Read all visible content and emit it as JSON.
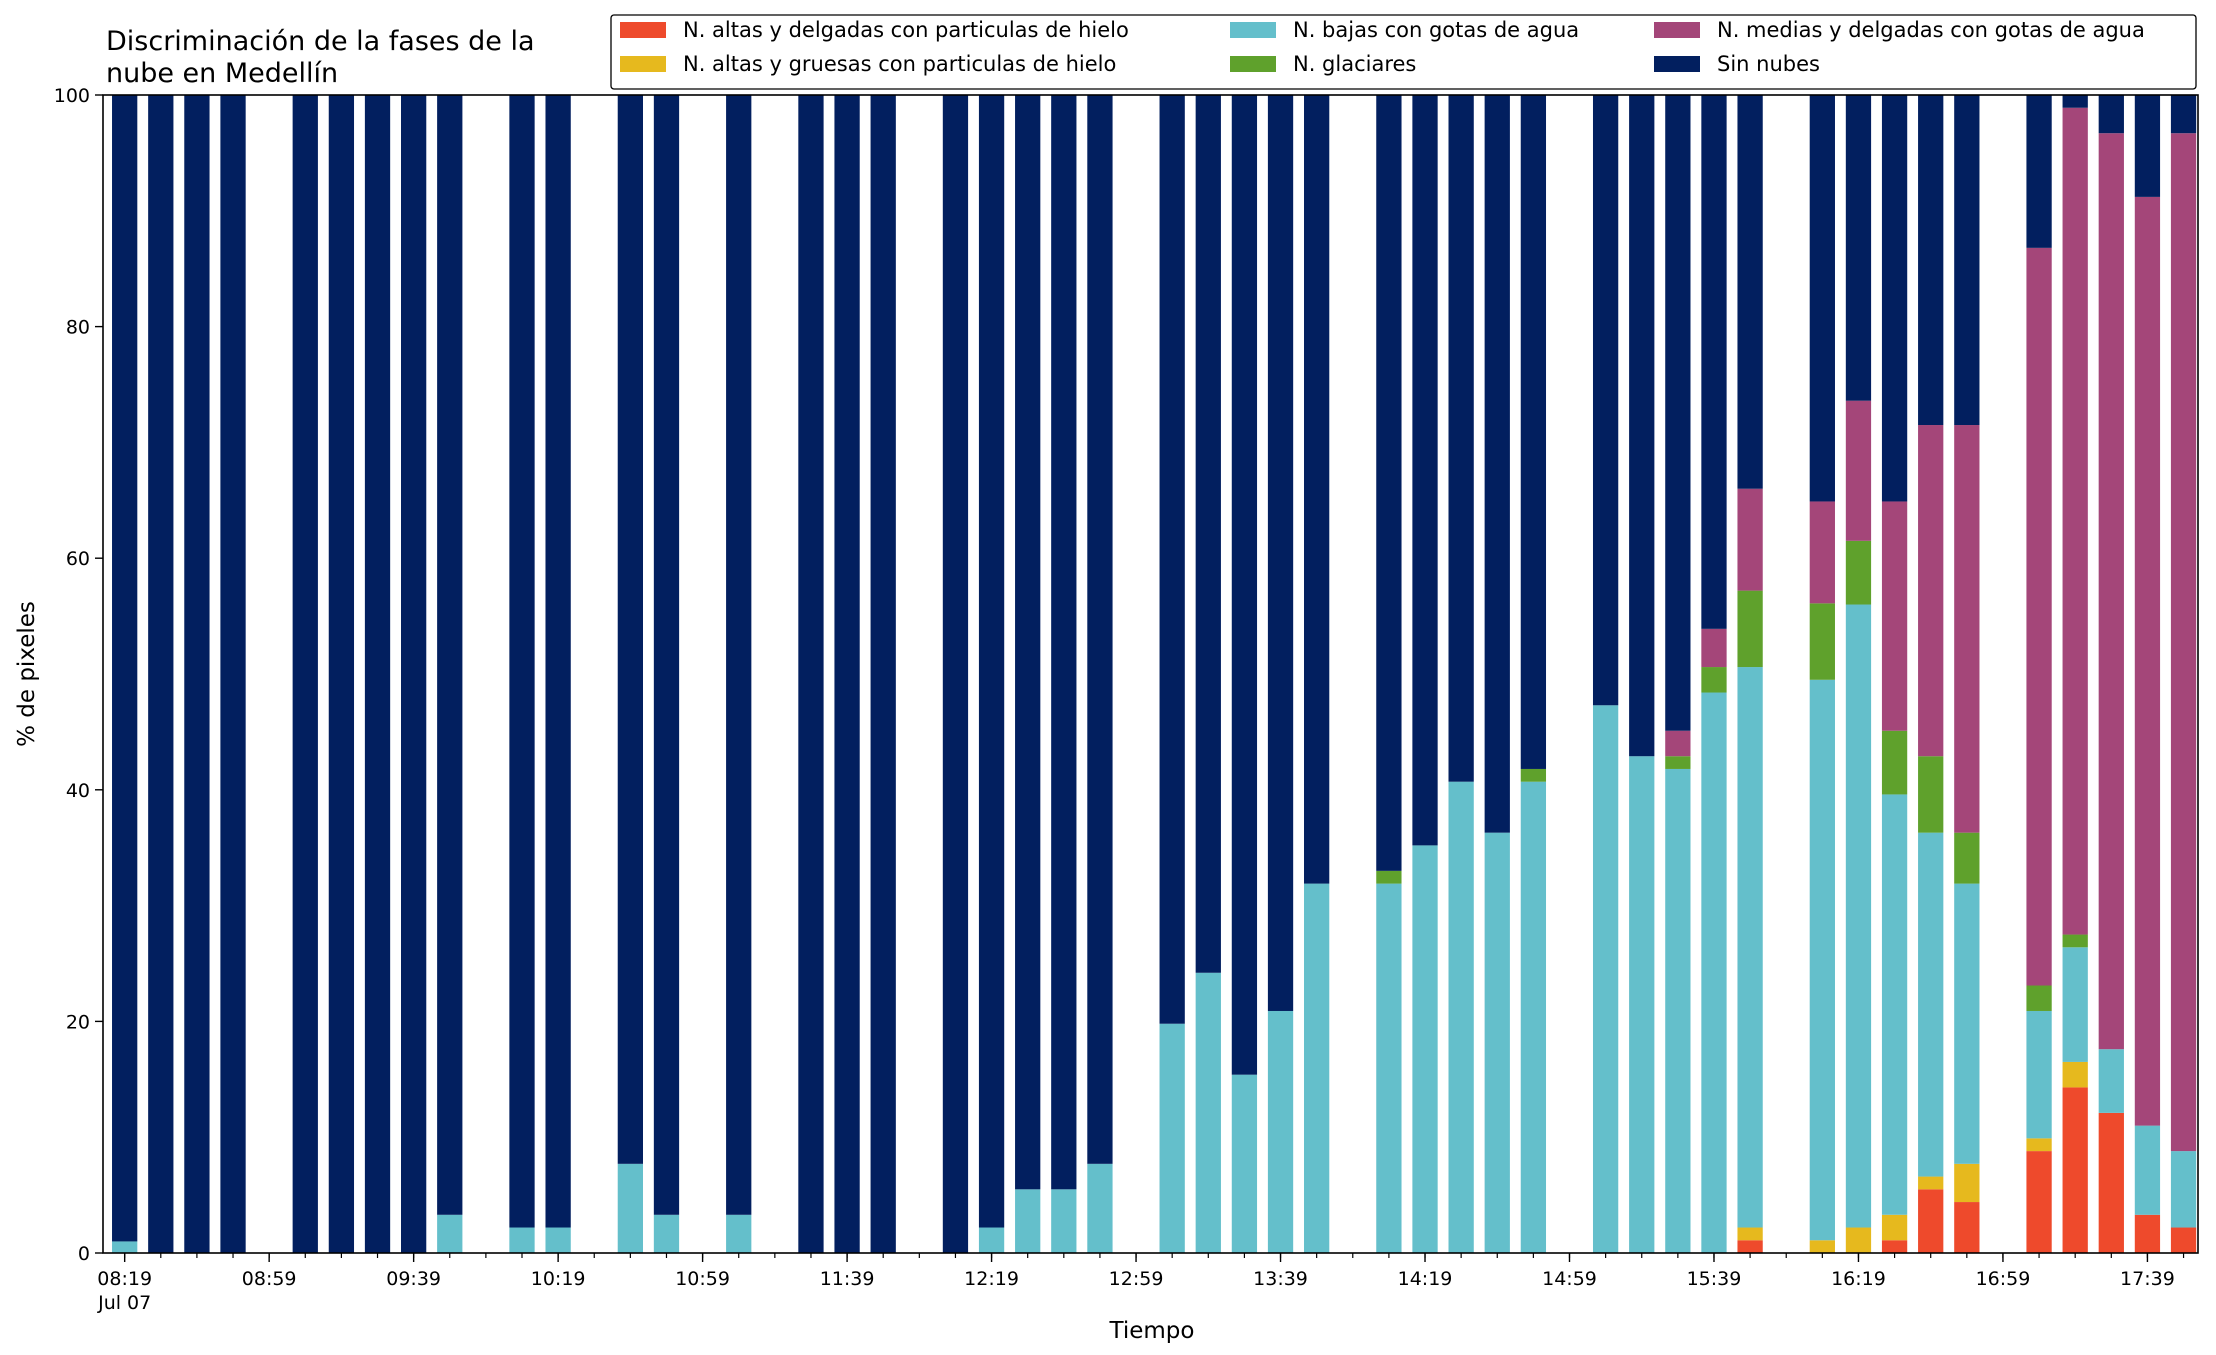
{
  "chart_data": {
    "type": "bar",
    "stacked": true,
    "title_lines": [
      "Discriminación de la fases de la",
      "nube en Medellín"
    ],
    "xlabel": "Tiempo",
    "ylabel": "% de pixeles",
    "ylim": [
      0,
      100
    ],
    "yticks": [
      "0",
      "20",
      "40",
      "60",
      "80",
      "100"
    ],
    "grid": false,
    "legend_position": "top-right",
    "legend_columns": 3,
    "xlim_minutes": [
      "08:13",
      "17:53"
    ],
    "x_major_ticks": [
      {
        "time": "08:19",
        "label": "08:19",
        "sublabel": "Jul 07"
      },
      {
        "time": "08:59",
        "label": "08:59"
      },
      {
        "time": "09:39",
        "label": "09:39"
      },
      {
        "time": "10:19",
        "label": "10:19"
      },
      {
        "time": "10:59",
        "label": "10:59"
      },
      {
        "time": "11:39",
        "label": "11:39"
      },
      {
        "time": "12:19",
        "label": "12:19"
      },
      {
        "time": "12:59",
        "label": "12:59"
      },
      {
        "time": "13:39",
        "label": "13:39"
      },
      {
        "time": "14:19",
        "label": "14:19"
      },
      {
        "time": "14:59",
        "label": "14:59"
      },
      {
        "time": "15:39",
        "label": "15:39"
      },
      {
        "time": "16:19",
        "label": "16:19"
      },
      {
        "time": "16:59",
        "label": "16:59"
      },
      {
        "time": "17:39",
        "label": "17:39"
      }
    ],
    "series": [
      {
        "key": "altas_delgadas",
        "name": "N. altas y delgadas con particulas de hielo",
        "color": "#ee4a2c"
      },
      {
        "key": "altas_gruesas",
        "name": "N. altas y gruesas con particulas de hielo",
        "color": "#e6b91e"
      },
      {
        "key": "bajas",
        "name": "N. bajas con gotas de agua",
        "color": "#64bfcb"
      },
      {
        "key": "glaciares",
        "name": "N. glaciares",
        "color": "#5fa12c"
      },
      {
        "key": "medias",
        "name": "N. medias y delgadas con gotas de agua",
        "color": "#a44679"
      },
      {
        "key": "sin_nubes",
        "name": "Sin nubes",
        "color": "#021f5f"
      }
    ],
    "legend_order": [
      "altas_delgadas",
      "bajas",
      "medias",
      "altas_gruesas",
      "glaciares",
      "sin_nubes"
    ],
    "bars": [
      {
        "time": "08:19",
        "values": [
          0,
          0,
          1,
          0,
          0,
          99
        ]
      },
      {
        "time": "08:29",
        "values": [
          0,
          0,
          0,
          0,
          0,
          100
        ]
      },
      {
        "time": "08:39",
        "values": [
          0,
          0,
          0,
          0,
          0,
          100
        ]
      },
      {
        "time": "08:49",
        "values": [
          0,
          0,
          0,
          0,
          0,
          100
        ]
      },
      {
        "time": "09:09",
        "values": [
          0,
          0,
          0,
          0,
          0,
          100
        ]
      },
      {
        "time": "09:19",
        "values": [
          0,
          0,
          0,
          0,
          0,
          100
        ]
      },
      {
        "time": "09:29",
        "values": [
          0,
          0,
          0,
          0,
          0,
          100
        ]
      },
      {
        "time": "09:39",
        "values": [
          0,
          0,
          0,
          0,
          0,
          100
        ]
      },
      {
        "time": "09:49",
        "values": [
          0,
          0,
          3.3,
          0,
          0,
          96.7
        ]
      },
      {
        "time": "10:09",
        "values": [
          0,
          0,
          2.2,
          0,
          0,
          97.8
        ]
      },
      {
        "time": "10:19",
        "values": [
          0,
          0,
          2.2,
          0,
          0,
          97.8
        ]
      },
      {
        "time": "10:39",
        "values": [
          0,
          0,
          7.7,
          0,
          0,
          92.3
        ]
      },
      {
        "time": "10:49",
        "values": [
          0,
          0,
          3.3,
          0,
          0,
          96.7
        ]
      },
      {
        "time": "11:09",
        "values": [
          0,
          0,
          3.3,
          0,
          0,
          96.7
        ]
      },
      {
        "time": "11:29",
        "values": [
          0,
          0,
          0,
          0,
          0,
          100
        ]
      },
      {
        "time": "11:39",
        "values": [
          0,
          0,
          0,
          0,
          0,
          100
        ]
      },
      {
        "time": "11:49",
        "values": [
          0,
          0,
          0,
          0,
          0,
          100
        ]
      },
      {
        "time": "12:09",
        "values": [
          0,
          0,
          0,
          0,
          0,
          100
        ]
      },
      {
        "time": "12:19",
        "values": [
          0,
          0,
          2.2,
          0,
          0,
          97.8
        ]
      },
      {
        "time": "12:29",
        "values": [
          0,
          0,
          5.5,
          0,
          0,
          94.5
        ]
      },
      {
        "time": "12:39",
        "values": [
          0,
          0,
          5.5,
          0,
          0,
          94.5
        ]
      },
      {
        "time": "12:49",
        "values": [
          0,
          0,
          7.7,
          0,
          0,
          92.3
        ]
      },
      {
        "time": "13:09",
        "values": [
          0,
          0,
          19.8,
          0,
          0,
          80.2
        ]
      },
      {
        "time": "13:19",
        "values": [
          0,
          0,
          24.2,
          0,
          0,
          75.8
        ]
      },
      {
        "time": "13:29",
        "values": [
          0,
          0,
          15.4,
          0,
          0,
          84.6
        ]
      },
      {
        "time": "13:39",
        "values": [
          0,
          0,
          20.9,
          0,
          0,
          79.1
        ]
      },
      {
        "time": "13:49",
        "values": [
          0,
          0,
          31.9,
          0,
          0,
          68.1
        ]
      },
      {
        "time": "14:09",
        "values": [
          0,
          0,
          31.9,
          1.1,
          0,
          67
        ]
      },
      {
        "time": "14:19",
        "values": [
          0,
          0,
          35.2,
          0,
          0,
          64.8
        ]
      },
      {
        "time": "14:29",
        "values": [
          0,
          0,
          40.7,
          0,
          0,
          59.3
        ]
      },
      {
        "time": "14:39",
        "values": [
          0,
          0,
          36.3,
          0,
          0,
          63.7
        ]
      },
      {
        "time": "14:49",
        "values": [
          0,
          0,
          40.7,
          1.1,
          0,
          58.2
        ]
      },
      {
        "time": "15:09",
        "values": [
          0,
          0,
          47.3,
          0,
          0,
          52.7
        ]
      },
      {
        "time": "15:19",
        "values": [
          0,
          0,
          42.9,
          0,
          0,
          57.1
        ]
      },
      {
        "time": "15:29",
        "values": [
          0,
          0,
          41.8,
          1.1,
          2.2,
          54.9
        ]
      },
      {
        "time": "15:39",
        "values": [
          0,
          0,
          48.4,
          2.2,
          3.3,
          46.1
        ]
      },
      {
        "time": "15:49",
        "values": [
          1.1,
          1.1,
          48.4,
          6.6,
          8.8,
          34
        ]
      },
      {
        "time": "16:09",
        "values": [
          0,
          1.1,
          48.4,
          6.6,
          8.8,
          35.1
        ]
      },
      {
        "time": "16:19",
        "values": [
          0,
          2.2,
          53.8,
          5.5,
          12.1,
          26.4
        ]
      },
      {
        "time": "16:29",
        "values": [
          1.1,
          2.2,
          36.3,
          5.5,
          19.8,
          35.1
        ]
      },
      {
        "time": "16:39",
        "values": [
          5.5,
          1.1,
          29.7,
          6.6,
          28.6,
          28.5
        ]
      },
      {
        "time": "16:49",
        "values": [
          4.4,
          3.3,
          24.2,
          4.4,
          35.2,
          28.5
        ]
      },
      {
        "time": "17:09",
        "values": [
          8.8,
          1.1,
          11,
          2.2,
          63.7,
          13.2
        ]
      },
      {
        "time": "17:19",
        "values": [
          14.3,
          2.2,
          9.9,
          1.1,
          71.4,
          1.1
        ]
      },
      {
        "time": "17:29",
        "values": [
          12.1,
          0,
          5.5,
          0,
          79.1,
          3.3
        ]
      },
      {
        "time": "17:39",
        "values": [
          3.3,
          0,
          7.7,
          0,
          80.2,
          8.8
        ]
      },
      {
        "time": "17:49",
        "values": [
          2.2,
          0,
          6.6,
          0,
          87.9,
          3.3
        ]
      }
    ]
  }
}
